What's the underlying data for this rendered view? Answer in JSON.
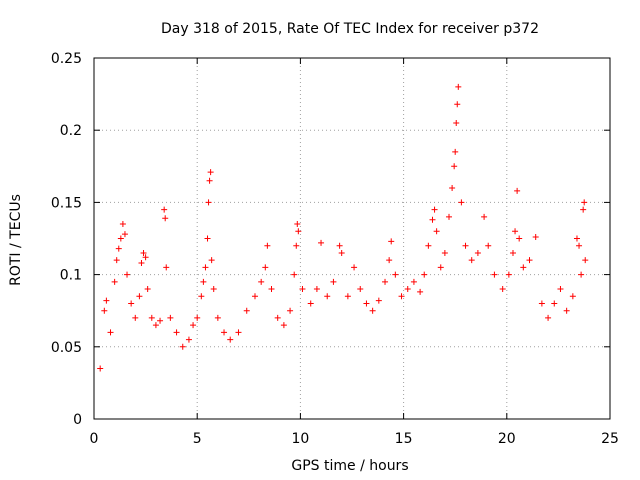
{
  "chart_data": {
    "type": "scatter",
    "title": "Day 318 of 2015, Rate Of TEC Index for receiver p372",
    "xlabel": "GPS time / hours",
    "ylabel": "ROTI / TECUs",
    "xlim": [
      0,
      25
    ],
    "ylim": [
      0,
      0.25
    ],
    "xticks": [
      0,
      5,
      10,
      15,
      20,
      25
    ],
    "xtick_labels": [
      "0",
      "5",
      "10",
      "15",
      "20",
      "25"
    ],
    "yticks": [
      0,
      0.05,
      0.1,
      0.15,
      0.2,
      0.25
    ],
    "ytick_labels": [
      "0",
      "0.05",
      "0.1",
      "0.15",
      "0.2",
      "0.25"
    ],
    "grid": true,
    "marker": "+",
    "series": [
      {
        "name": "ROTI",
        "color": "#ff0000",
        "points": [
          [
            0.3,
            0.035
          ],
          [
            0.5,
            0.075
          ],
          [
            0.6,
            0.082
          ],
          [
            0.8,
            0.06
          ],
          [
            1.0,
            0.095
          ],
          [
            1.1,
            0.11
          ],
          [
            1.2,
            0.118
          ],
          [
            1.3,
            0.125
          ],
          [
            1.4,
            0.135
          ],
          [
            1.5,
            0.128
          ],
          [
            1.6,
            0.1
          ],
          [
            1.8,
            0.08
          ],
          [
            2.0,
            0.07
          ],
          [
            2.2,
            0.085
          ],
          [
            2.3,
            0.108
          ],
          [
            2.4,
            0.115
          ],
          [
            2.5,
            0.112
          ],
          [
            2.6,
            0.09
          ],
          [
            2.8,
            0.07
          ],
          [
            3.0,
            0.065
          ],
          [
            3.2,
            0.068
          ],
          [
            3.4,
            0.145
          ],
          [
            3.45,
            0.139
          ],
          [
            3.5,
            0.105
          ],
          [
            3.7,
            0.07
          ],
          [
            4.0,
            0.06
          ],
          [
            4.3,
            0.05
          ],
          [
            4.6,
            0.055
          ],
          [
            4.8,
            0.065
          ],
          [
            5.0,
            0.07
          ],
          [
            5.2,
            0.085
          ],
          [
            5.3,
            0.095
          ],
          [
            5.4,
            0.105
          ],
          [
            5.5,
            0.125
          ],
          [
            5.55,
            0.15
          ],
          [
            5.6,
            0.165
          ],
          [
            5.65,
            0.171
          ],
          [
            5.7,
            0.11
          ],
          [
            5.8,
            0.09
          ],
          [
            6.0,
            0.07
          ],
          [
            6.3,
            0.06
          ],
          [
            6.6,
            0.055
          ],
          [
            7.0,
            0.06
          ],
          [
            7.4,
            0.075
          ],
          [
            7.8,
            0.085
          ],
          [
            8.1,
            0.095
          ],
          [
            8.3,
            0.105
          ],
          [
            8.4,
            0.12
          ],
          [
            8.6,
            0.09
          ],
          [
            8.9,
            0.07
          ],
          [
            9.2,
            0.065
          ],
          [
            9.5,
            0.075
          ],
          [
            9.7,
            0.1
          ],
          [
            9.8,
            0.12
          ],
          [
            9.85,
            0.135
          ],
          [
            9.9,
            0.13
          ],
          [
            10.1,
            0.09
          ],
          [
            10.5,
            0.08
          ],
          [
            10.8,
            0.09
          ],
          [
            11.0,
            0.122
          ],
          [
            11.3,
            0.085
          ],
          [
            11.6,
            0.095
          ],
          [
            11.9,
            0.12
          ],
          [
            12.0,
            0.115
          ],
          [
            12.3,
            0.085
          ],
          [
            12.6,
            0.105
          ],
          [
            12.9,
            0.09
          ],
          [
            13.2,
            0.08
          ],
          [
            13.5,
            0.075
          ],
          [
            13.8,
            0.082
          ],
          [
            14.1,
            0.095
          ],
          [
            14.3,
            0.11
          ],
          [
            14.4,
            0.123
          ],
          [
            14.6,
            0.1
          ],
          [
            14.9,
            0.085
          ],
          [
            15.2,
            0.09
          ],
          [
            15.5,
            0.095
          ],
          [
            15.8,
            0.088
          ],
          [
            16.0,
            0.1
          ],
          [
            16.2,
            0.12
          ],
          [
            16.4,
            0.138
          ],
          [
            16.5,
            0.145
          ],
          [
            16.6,
            0.13
          ],
          [
            16.8,
            0.105
          ],
          [
            17.0,
            0.115
          ],
          [
            17.2,
            0.14
          ],
          [
            17.35,
            0.16
          ],
          [
            17.45,
            0.175
          ],
          [
            17.5,
            0.185
          ],
          [
            17.55,
            0.205
          ],
          [
            17.6,
            0.218
          ],
          [
            17.65,
            0.23
          ],
          [
            17.8,
            0.15
          ],
          [
            18.0,
            0.12
          ],
          [
            18.3,
            0.11
          ],
          [
            18.6,
            0.115
          ],
          [
            18.9,
            0.14
          ],
          [
            19.1,
            0.12
          ],
          [
            19.4,
            0.1
          ],
          [
            19.8,
            0.09
          ],
          [
            20.1,
            0.1
          ],
          [
            20.3,
            0.115
          ],
          [
            20.4,
            0.13
          ],
          [
            20.5,
            0.158
          ],
          [
            20.6,
            0.125
          ],
          [
            20.8,
            0.105
          ],
          [
            21.1,
            0.11
          ],
          [
            21.4,
            0.126
          ],
          [
            21.7,
            0.08
          ],
          [
            22.0,
            0.07
          ],
          [
            22.3,
            0.08
          ],
          [
            22.6,
            0.09
          ],
          [
            22.9,
            0.075
          ],
          [
            23.2,
            0.085
          ],
          [
            23.4,
            0.125
          ],
          [
            23.5,
            0.12
          ],
          [
            23.6,
            0.1
          ],
          [
            23.7,
            0.145
          ],
          [
            23.75,
            0.15
          ],
          [
            23.8,
            0.11
          ]
        ]
      }
    ]
  }
}
